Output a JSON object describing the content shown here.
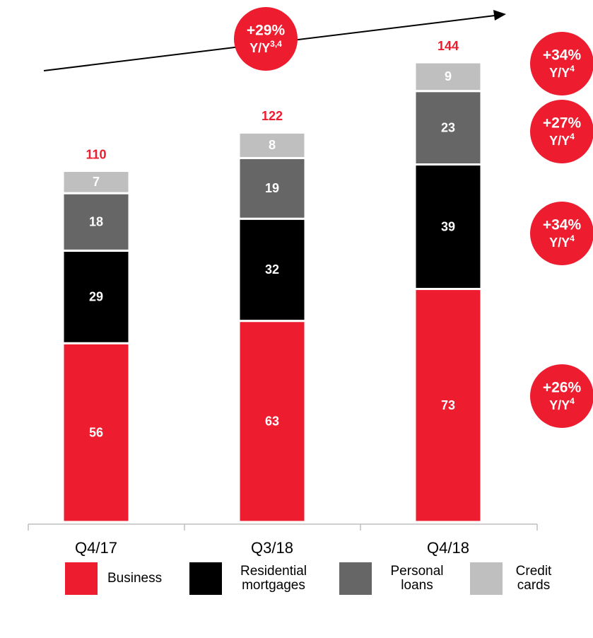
{
  "chart_data": {
    "type": "stacked-bar",
    "categories": [
      "Q4/17",
      "Q3/18",
      "Q4/18"
    ],
    "series": [
      {
        "name": "Business",
        "color": "#ed1c2e",
        "values": [
          56,
          63,
          73
        ],
        "growth": {
          "pct": "+26%",
          "text": "Y/Y",
          "sup": "4"
        }
      },
      {
        "name": "Residential mortgages",
        "color": "#000000",
        "values": [
          29,
          32,
          39
        ],
        "growth": {
          "pct": "+34%",
          "text": "Y/Y",
          "sup": "4"
        }
      },
      {
        "name": "Personal loans",
        "color": "#666666",
        "values": [
          18,
          19,
          23
        ],
        "growth": {
          "pct": "+27%",
          "text": "Y/Y",
          "sup": "4"
        }
      },
      {
        "name": "Credit cards",
        "color": "#bfbfbf",
        "values": [
          7,
          8,
          9
        ],
        "growth": {
          "pct": "+34%",
          "text": "Y/Y",
          "sup": "4"
        }
      }
    ],
    "totals": [
      110,
      122,
      144
    ],
    "total_color": "#ed1c2e",
    "total_growth": {
      "pct": "+29%",
      "text": "Y/Y",
      "sup": "3,4"
    },
    "ylim": [
      0,
      150
    ]
  }
}
